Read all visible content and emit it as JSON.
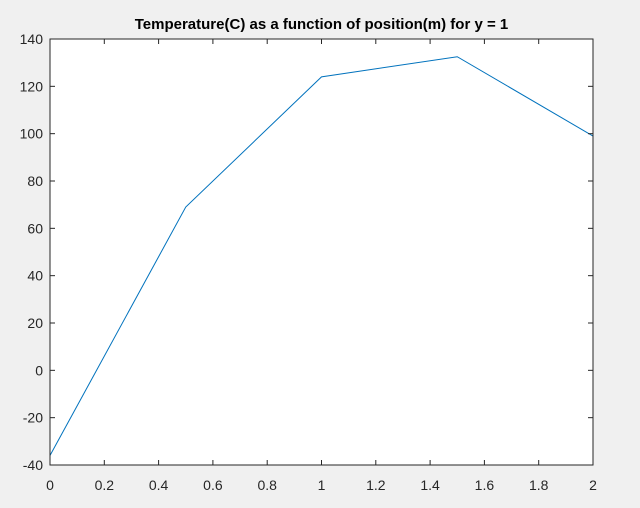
{
  "chart_data": {
    "type": "line",
    "title": "Temperature(C) as a function of position(m) for y = 1",
    "xlabel": "",
    "ylabel": "",
    "xlim": [
      0,
      2
    ],
    "ylim": [
      -40,
      140
    ],
    "xticks": [
      "0",
      "0.2",
      "0.4",
      "0.6",
      "0.8",
      "1",
      "1.2",
      "1.4",
      "1.6",
      "1.8",
      "2"
    ],
    "yticks": [
      "-40",
      "-20",
      "0",
      "20",
      "40",
      "60",
      "80",
      "100",
      "120",
      "140"
    ],
    "grid": false,
    "series": [
      {
        "x": [
          0,
          0.5,
          1,
          1.5,
          2
        ],
        "y": [
          -36,
          69,
          124,
          132.5,
          99
        ],
        "color": "#0072bd"
      }
    ]
  },
  "colors": {
    "figure_background": "#f0f0f0",
    "axes_background": "#ffffff",
    "axis_color": "#262626",
    "line": "#0072bd"
  }
}
